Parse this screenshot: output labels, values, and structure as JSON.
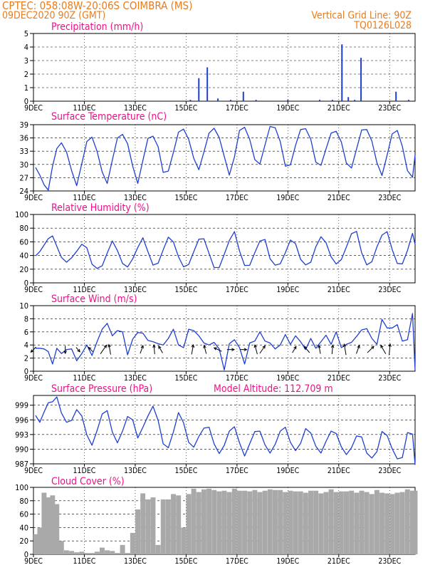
{
  "header": {
    "line1": "CPTEC:  058:08W-20:06S  COIMBRA (MS)",
    "line2": "09DEC2020 90Z (GMT)",
    "grid_note": "Vertical Grid Line: 90Z",
    "code": "TQ0126L028",
    "model_altitude": "Model Altitude: 112.709 m"
  },
  "colors": {
    "orange": "#e87c1e",
    "magenta": "#ee1188",
    "line": "#1f3fd2",
    "bar": "#1f3fd2",
    "cloud": "#a9a9a9",
    "arrow": "#000000",
    "frame": "#000000"
  },
  "x_axis": {
    "tick_labels": [
      "9DEC",
      "11DEC",
      "13DEC",
      "15DEC",
      "17DEC",
      "19DEC",
      "21DEC",
      "23DEC"
    ],
    "start_day": 9,
    "end_day": 24
  },
  "chart_data": [
    {
      "id": "precip",
      "type": "bar",
      "title": "Precipitation (mm/h)",
      "xlabel": "",
      "ylabel": "",
      "ylim": [
        0,
        5
      ],
      "yticks": [
        "0",
        "1",
        "2",
        "3",
        "4",
        "5"
      ],
      "grid": "dashed horizontal",
      "x": [
        "15DEC",
        "15DEC",
        "15DEC",
        "16DEC",
        "16DEC",
        "17DEC",
        "17DEC",
        "19DEC",
        "20DEC",
        "20DEC",
        "21DEC",
        "21DEC",
        "21DEC",
        "21DEC",
        "23DEC",
        "23DEC"
      ],
      "values": [
        0.1,
        1.7,
        2.5,
        0.2,
        0.1,
        0.7,
        0.1,
        0.1,
        0.1,
        0.1,
        4.2,
        0.3,
        0.1,
        3.2,
        0.7,
        0.1
      ]
    },
    {
      "id": "temp",
      "type": "line",
      "title": "Surface Temperature (nC)",
      "xlabel": "",
      "ylabel": "",
      "ylim": [
        24,
        39
      ],
      "yticks": [
        "24",
        "27",
        "30",
        "33",
        "36",
        "39"
      ],
      "grid": "dashed horizontal",
      "x": [
        "9DEC",
        "9DEC",
        "9DEC",
        "9DEC",
        "9DEC",
        "9DEC",
        "10DEC",
        "10DEC",
        "10DEC",
        "10DEC",
        "10DEC",
        "11DEC",
        "11DEC",
        "11DEC",
        "11DEC",
        "11DEC",
        "12DEC",
        "12DEC",
        "12DEC",
        "12DEC",
        "12DEC",
        "13DEC",
        "13DEC",
        "13DEC",
        "13DEC",
        "13DEC",
        "14DEC",
        "14DEC",
        "14DEC",
        "14DEC",
        "14DEC",
        "15DEC",
        "15DEC",
        "15DEC",
        "15DEC",
        "15DEC",
        "16DEC",
        "16DEC",
        "16DEC",
        "16DEC",
        "16DEC",
        "17DEC",
        "17DEC",
        "17DEC",
        "17DEC",
        "17DEC",
        "18DEC",
        "18DEC",
        "18DEC",
        "18DEC",
        "18DEC",
        "19DEC",
        "19DEC",
        "19DEC",
        "19DEC",
        "19DEC",
        "20DEC",
        "20DEC",
        "20DEC",
        "20DEC",
        "20DEC",
        "21DEC",
        "21DEC",
        "21DEC",
        "21DEC",
        "21DEC",
        "22DEC",
        "22DEC",
        "22DEC",
        "22DEC",
        "22DEC",
        "23DEC",
        "23DEC",
        "23DEC",
        "23DEC",
        "23DEC",
        "24DEC"
      ],
      "series": [
        {
          "name": "",
          "values": [
            29.3,
            27.6,
            25.4,
            24.2,
            29.6,
            33.6,
            34.9,
            32.8,
            28.6,
            25.2,
            30.2,
            35.2,
            36.2,
            33.0,
            28.3,
            25.7,
            31.0,
            36.0,
            36.8,
            34.7,
            29.6,
            25.7,
            30.9,
            35.9,
            36.4,
            34.0,
            28.2,
            28.5,
            32.7,
            37.3,
            38.0,
            35.7,
            31.4,
            28.8,
            32.8,
            37.1,
            38.2,
            36.1,
            31.8,
            27.6,
            31.7,
            37.7,
            38.4,
            35.7,
            31.1,
            30.1,
            34.4,
            38.6,
            38.3,
            35.2,
            29.6,
            29.9,
            34.3,
            37.9,
            38.1,
            35.7,
            30.5,
            29.8,
            33.5,
            37.1,
            37.5,
            35.1,
            30.3,
            29.2,
            33.5,
            37.8,
            37.9,
            35.3,
            30.4,
            27.5,
            32.1,
            36.9,
            37.7,
            34.1,
            28.6,
            27.1,
            32.1
          ]
        }
      ]
    },
    {
      "id": "rh",
      "type": "line",
      "title": "Relative Humidity (%)",
      "xlabel": "",
      "ylabel": "",
      "ylim": [
        0,
        100
      ],
      "yticks": [
        "0",
        "20",
        "40",
        "60",
        "80",
        "100"
      ],
      "grid": "dashed horizontal",
      "x": [
        "9DEC",
        "9DEC",
        "9DEC",
        "9DEC",
        "9DEC",
        "9DEC",
        "10DEC",
        "10DEC",
        "10DEC",
        "10DEC",
        "10DEC",
        "11DEC",
        "11DEC",
        "11DEC",
        "11DEC",
        "11DEC",
        "12DEC",
        "12DEC",
        "12DEC",
        "12DEC",
        "12DEC",
        "13DEC",
        "13DEC",
        "13DEC",
        "13DEC",
        "13DEC",
        "14DEC",
        "14DEC",
        "14DEC",
        "14DEC",
        "14DEC",
        "15DEC",
        "15DEC",
        "15DEC",
        "15DEC",
        "15DEC",
        "16DEC",
        "16DEC",
        "16DEC",
        "16DEC",
        "16DEC",
        "17DEC",
        "17DEC",
        "17DEC",
        "17DEC",
        "17DEC",
        "18DEC",
        "18DEC",
        "18DEC",
        "18DEC",
        "18DEC",
        "19DEC",
        "19DEC",
        "19DEC",
        "19DEC",
        "19DEC",
        "20DEC",
        "20DEC",
        "20DEC",
        "20DEC",
        "20DEC",
        "21DEC",
        "21DEC",
        "21DEC",
        "21DEC",
        "21DEC",
        "22DEC",
        "22DEC",
        "22DEC",
        "22DEC",
        "22DEC",
        "23DEC",
        "23DEC",
        "23DEC",
        "23DEC",
        "23DEC",
        "24DEC"
      ],
      "series": [
        {
          "name": "",
          "values": [
            39.5,
            45.7,
            55.2,
            64.7,
            68.6,
            53.4,
            37.2,
            30.2,
            36.7,
            46.1,
            56.5,
            51.3,
            27.4,
            21.1,
            24.9,
            43.6,
            61.2,
            47.3,
            28.3,
            23.2,
            35.1,
            51.7,
            65.9,
            45.4,
            26.0,
            28.8,
            48.2,
            66.8,
            59.9,
            38.1,
            23.4,
            26.9,
            45.4,
            63.9,
            64.5,
            43.0,
            22.4,
            22.5,
            41.8,
            61.9,
            74.9,
            46.7,
            25.4,
            25.6,
            44.2,
            61.1,
            63.4,
            35.2,
            25.9,
            27.8,
            44.2,
            62.6,
            57.3,
            34.4,
            26.3,
            30.2,
            52.8,
            67.4,
            58.7,
            38.0,
            27.6,
            34.0,
            52.3,
            71.9,
            75.2,
            43.9,
            26.3,
            30.9,
            52.5,
            69.8,
            74.9,
            48.9,
            28.4,
            27.7,
            47.3,
            72.3,
            56.6
          ]
        }
      ]
    },
    {
      "id": "wind",
      "type": "line",
      "title": "Surface Wind (m/s)",
      "xlabel": "",
      "ylabel": "",
      "ylim": [
        0,
        10
      ],
      "yticks": [
        "0",
        "2",
        "4",
        "6",
        "8",
        "10"
      ],
      "grid": "dashed horizontal",
      "x": [
        "9DEC",
        "9DEC",
        "9DEC",
        "9DEC",
        "9DEC",
        "9DEC",
        "10DEC",
        "10DEC",
        "10DEC",
        "10DEC",
        "10DEC",
        "11DEC",
        "11DEC",
        "11DEC",
        "11DEC",
        "11DEC",
        "12DEC",
        "12DEC",
        "12DEC",
        "12DEC",
        "12DEC",
        "13DEC",
        "13DEC",
        "13DEC",
        "13DEC",
        "13DEC",
        "14DEC",
        "14DEC",
        "14DEC",
        "14DEC",
        "14DEC",
        "15DEC",
        "15DEC",
        "15DEC",
        "15DEC",
        "15DEC",
        "16DEC",
        "16DEC",
        "16DEC",
        "16DEC",
        "16DEC",
        "17DEC",
        "17DEC",
        "17DEC",
        "17DEC",
        "17DEC",
        "18DEC",
        "18DEC",
        "18DEC",
        "18DEC",
        "18DEC",
        "19DEC",
        "19DEC",
        "19DEC",
        "19DEC",
        "19DEC",
        "20DEC",
        "20DEC",
        "20DEC",
        "20DEC",
        "20DEC",
        "21DEC",
        "21DEC",
        "21DEC",
        "21DEC",
        "21DEC",
        "22DEC",
        "22DEC",
        "22DEC",
        "22DEC",
        "22DEC",
        "23DEC",
        "23DEC",
        "23DEC",
        "23DEC",
        "23DEC",
        "24DEC"
      ],
      "series": [
        {
          "name": "",
          "values": [
            3.5,
            3.5,
            3.4,
            3.0,
            1.1,
            3.5,
            2.7,
            3.3,
            3.4,
            1.6,
            2.7,
            4.0,
            2.4,
            4.5,
            6.4,
            7.3,
            5.4,
            6.2,
            6.0,
            2.5,
            4.9,
            5.9,
            5.8,
            4.7,
            4.5,
            4.2,
            4.0,
            5.0,
            6.4,
            4.0,
            3.6,
            6.4,
            6.2,
            5.4,
            4.3,
            4.0,
            4.4,
            3.4,
            0.2,
            4.2,
            4.8,
            3.6,
            1.1,
            4.3,
            4.6,
            6.0,
            4.6,
            4.3,
            3.4,
            4.0,
            5.6,
            4.1,
            5.4,
            4.5,
            3.3,
            5.0,
            3.5,
            4.5,
            5.5,
            4.1,
            6.0,
            3.6,
            4.1,
            4.4,
            5.3,
            6.3,
            6.5,
            5.0,
            4.1,
            7.9,
            6.6,
            6.6,
            7.1,
            4.6,
            4.8,
            8.8,
            0.1
          ]
        }
      ],
      "vectors": [
        {
          "x": "9DEC",
          "dir": "225°",
          "speed": 3.3
        },
        {
          "x": "10DEC",
          "dir": "180°",
          "speed": 3.6
        },
        {
          "x": "10DEC",
          "dir": "140°",
          "speed": 2.0
        },
        {
          "x": "11DEC",
          "dir": "315°",
          "speed": 2.3
        },
        {
          "x": "11DEC",
          "dir": "35°",
          "speed": 6.1
        },
        {
          "x": "12DEC",
          "dir": "350°",
          "speed": 5.8
        },
        {
          "x": "13DEC",
          "dir": "20°",
          "speed": 4.2
        },
        {
          "x": "13DEC",
          "dir": "355°",
          "speed": 4.9
        },
        {
          "x": "14DEC",
          "dir": "330°",
          "speed": 3.9
        },
        {
          "x": "15DEC",
          "dir": "10°",
          "speed": 5.3
        },
        {
          "x": "15DEC",
          "dir": "345°",
          "speed": 4.4
        },
        {
          "x": "16DEC",
          "dir": "295°",
          "speed": 4.2
        },
        {
          "x": "16DEC",
          "dir": "90°",
          "speed": 3.1
        },
        {
          "x": "17DEC",
          "dir": "90°",
          "speed": 2.7
        },
        {
          "x": "17DEC",
          "dir": "345°",
          "speed": 5.3
        },
        {
          "x": "18DEC",
          "dir": "35°",
          "speed": 4.9
        },
        {
          "x": "19DEC",
          "dir": "30°",
          "speed": 3.3
        },
        {
          "x": "19DEC",
          "dir": "320°",
          "speed": 4.0
        },
        {
          "x": "20DEC",
          "dir": "350°",
          "speed": 4.4
        },
        {
          "x": "20DEC",
          "dir": "5°",
          "speed": 4.8
        },
        {
          "x": "21DEC",
          "dir": "350°",
          "speed": 6.5
        },
        {
          "x": "21DEC",
          "dir": "20°",
          "speed": 4.6
        },
        {
          "x": "22DEC",
          "dir": "45°",
          "speed": 4.9
        },
        {
          "x": "22DEC",
          "dir": "330°",
          "speed": 5.5
        },
        {
          "x": "23DEC",
          "dir": "5°",
          "speed": 6.7
        }
      ]
    },
    {
      "id": "pres",
      "type": "line",
      "title": "Surface Pressure (hPa)",
      "xlabel": "",
      "ylabel": "",
      "ylim": [
        987,
        1001
      ],
      "yticks": [
        "987",
        "990",
        "993",
        "996",
        "999"
      ],
      "grid": "dashed horizontal",
      "x": [
        "9DEC",
        "9DEC",
        "9DEC",
        "9DEC",
        "9DEC",
        "9DEC",
        "10DEC",
        "10DEC",
        "10DEC",
        "10DEC",
        "10DEC",
        "11DEC",
        "11DEC",
        "11DEC",
        "11DEC",
        "11DEC",
        "12DEC",
        "12DEC",
        "12DEC",
        "12DEC",
        "12DEC",
        "13DEC",
        "13DEC",
        "13DEC",
        "13DEC",
        "13DEC",
        "14DEC",
        "14DEC",
        "14DEC",
        "14DEC",
        "14DEC",
        "15DEC",
        "15DEC",
        "15DEC",
        "15DEC",
        "15DEC",
        "16DEC",
        "16DEC",
        "16DEC",
        "16DEC",
        "16DEC",
        "17DEC",
        "17DEC",
        "17DEC",
        "17DEC",
        "17DEC",
        "18DEC",
        "18DEC",
        "18DEC",
        "18DEC",
        "18DEC",
        "19DEC",
        "19DEC",
        "19DEC",
        "19DEC",
        "19DEC",
        "20DEC",
        "20DEC",
        "20DEC",
        "20DEC",
        "20DEC",
        "21DEC",
        "21DEC",
        "21DEC",
        "21DEC",
        "21DEC",
        "22DEC",
        "22DEC",
        "22DEC",
        "22DEC",
        "22DEC",
        "23DEC",
        "23DEC",
        "23DEC",
        "23DEC",
        "23DEC",
        "24DEC"
      ],
      "series": [
        {
          "name": "",
          "values": [
            996.9,
            995.5,
            997.6,
            999.5,
            999.7,
            1000.7,
            997.4,
            995.5,
            995.9,
            998.1,
            996.8,
            992.9,
            990.8,
            993.8,
            997.2,
            997.9,
            993.5,
            991.3,
            993.7,
            996.7,
            996.0,
            992.3,
            994.5,
            996.8,
            998.8,
            995.9,
            991.1,
            990.3,
            993.5,
            997.5,
            995.4,
            991.4,
            990.4,
            992.6,
            994.3,
            994.5,
            991.1,
            989.1,
            990.8,
            993.7,
            994.6,
            991.3,
            988.6,
            991.1,
            993.6,
            993.7,
            990.9,
            989.2,
            991.0,
            993.7,
            994.5,
            991.4,
            989.7,
            991.2,
            994.2,
            993.3,
            990.6,
            989.2,
            991.6,
            993.7,
            993.2,
            990.5,
            988.9,
            990.3,
            992.7,
            992.5,
            989.2,
            988.2,
            989.5,
            993.6,
            992.8,
            990.1,
            988.0,
            988.3,
            993.4,
            993.1,
            986.8
          ]
        }
      ]
    },
    {
      "id": "cloud",
      "type": "area",
      "title": "Cloud Cover (%)",
      "xlabel": "",
      "ylabel": "",
      "ylim": [
        0,
        100
      ],
      "yticks": [
        "0",
        "20",
        "40",
        "60",
        "80",
        "100"
      ],
      "grid": "dashed horizontal",
      "x": [
        "9DEC",
        "9DEC",
        "9DEC",
        "9DEC",
        "9DEC",
        "9DEC",
        "10DEC",
        "10DEC",
        "10DEC",
        "10DEC",
        "10DEC",
        "11DEC",
        "11DEC",
        "11DEC",
        "11DEC",
        "11DEC",
        "12DEC",
        "12DEC",
        "12DEC",
        "12DEC",
        "12DEC",
        "13DEC",
        "13DEC",
        "13DEC",
        "13DEC",
        "13DEC",
        "14DEC",
        "14DEC",
        "14DEC",
        "14DEC",
        "14DEC",
        "15DEC",
        "15DEC",
        "15DEC",
        "15DEC",
        "15DEC",
        "16DEC",
        "16DEC",
        "16DEC",
        "16DEC",
        "16DEC",
        "17DEC",
        "17DEC",
        "17DEC",
        "17DEC",
        "17DEC",
        "18DEC",
        "18DEC",
        "18DEC",
        "18DEC",
        "18DEC",
        "19DEC",
        "19DEC",
        "19DEC",
        "19DEC",
        "19DEC",
        "20DEC",
        "20DEC",
        "20DEC",
        "20DEC",
        "20DEC",
        "21DEC",
        "21DEC",
        "21DEC",
        "21DEC",
        "21DEC",
        "22DEC",
        "22DEC",
        "22DEC",
        "22DEC",
        "22DEC",
        "23DEC",
        "23DEC",
        "23DEC",
        "23DEC",
        "23DEC",
        "24DEC"
      ],
      "values": [
        30,
        40,
        92,
        85,
        88,
        75,
        20,
        6,
        5,
        3,
        4,
        2,
        2,
        4,
        10,
        6,
        5,
        2,
        14,
        2,
        32,
        67,
        91,
        82,
        85,
        14,
        82,
        82,
        90,
        88,
        40,
        90,
        98,
        93,
        97,
        98,
        96,
        94,
        95,
        93,
        98,
        95,
        95,
        94,
        96,
        93,
        95,
        97,
        96,
        96,
        93,
        95,
        94,
        94,
        92,
        95,
        95,
        91,
        93,
        97,
        93,
        94,
        94,
        95,
        92,
        95,
        93,
        90,
        96,
        92,
        91,
        90,
        92,
        93,
        97,
        95,
        95
      ]
    }
  ]
}
